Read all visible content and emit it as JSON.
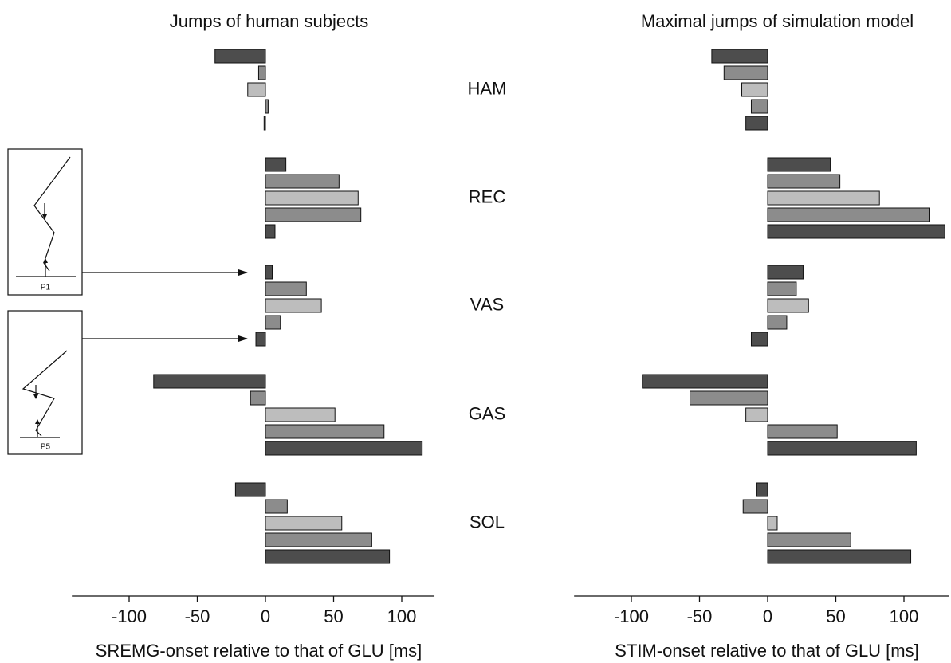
{
  "chart_data": [
    {
      "type": "bar",
      "orientation": "horizontal",
      "title": "Jumps of human subjects",
      "xlabel": "SREMG-onset relative to that of GLU [ms]",
      "categories": [
        "HAM",
        "REC",
        "VAS",
        "GAS",
        "SOL"
      ],
      "series": [
        {
          "color": "#4d4d4d",
          "values": [
            -37,
            15,
            5,
            -82,
            -22
          ]
        },
        {
          "color": "#8c8c8c",
          "values": [
            -5,
            54,
            30,
            -11,
            16
          ]
        },
        {
          "color": "#bdbdbd",
          "values": [
            -13,
            68,
            41,
            51,
            56
          ]
        },
        {
          "color": "#8c8c8c",
          "values": [
            2,
            70,
            11,
            87,
            78
          ]
        },
        {
          "color": "#4d4d4d",
          "values": [
            -1,
            7,
            -7,
            115,
            91
          ]
        }
      ],
      "xlim": [
        -142,
        124
      ],
      "xticks": [
        -100,
        -50,
        0,
        50,
        100
      ]
    },
    {
      "type": "bar",
      "orientation": "horizontal",
      "title": "Maximal jumps of simulation model",
      "xlabel": "STIM-onset relative to that of GLU [ms]",
      "series": [
        {
          "color": "#4d4d4d",
          "values": [
            -41,
            46,
            26,
            -92,
            -8
          ]
        },
        {
          "color": "#8c8c8c",
          "values": [
            -32,
            53,
            21,
            -57,
            -18
          ]
        },
        {
          "color": "#bdbdbd",
          "values": [
            -19,
            82,
            30,
            -16,
            7
          ]
        },
        {
          "color": "#8c8c8c",
          "values": [
            -12,
            119,
            14,
            51,
            61
          ]
        },
        {
          "color": "#4d4d4d",
          "values": [
            -16,
            130,
            -12,
            109,
            105
          ]
        }
      ],
      "xlim": [
        -142,
        133
      ],
      "xticks": [
        -100,
        -50,
        0,
        50,
        100
      ]
    }
  ],
  "insets": [
    {
      "label": "P1"
    },
    {
      "label": "P5"
    }
  ]
}
